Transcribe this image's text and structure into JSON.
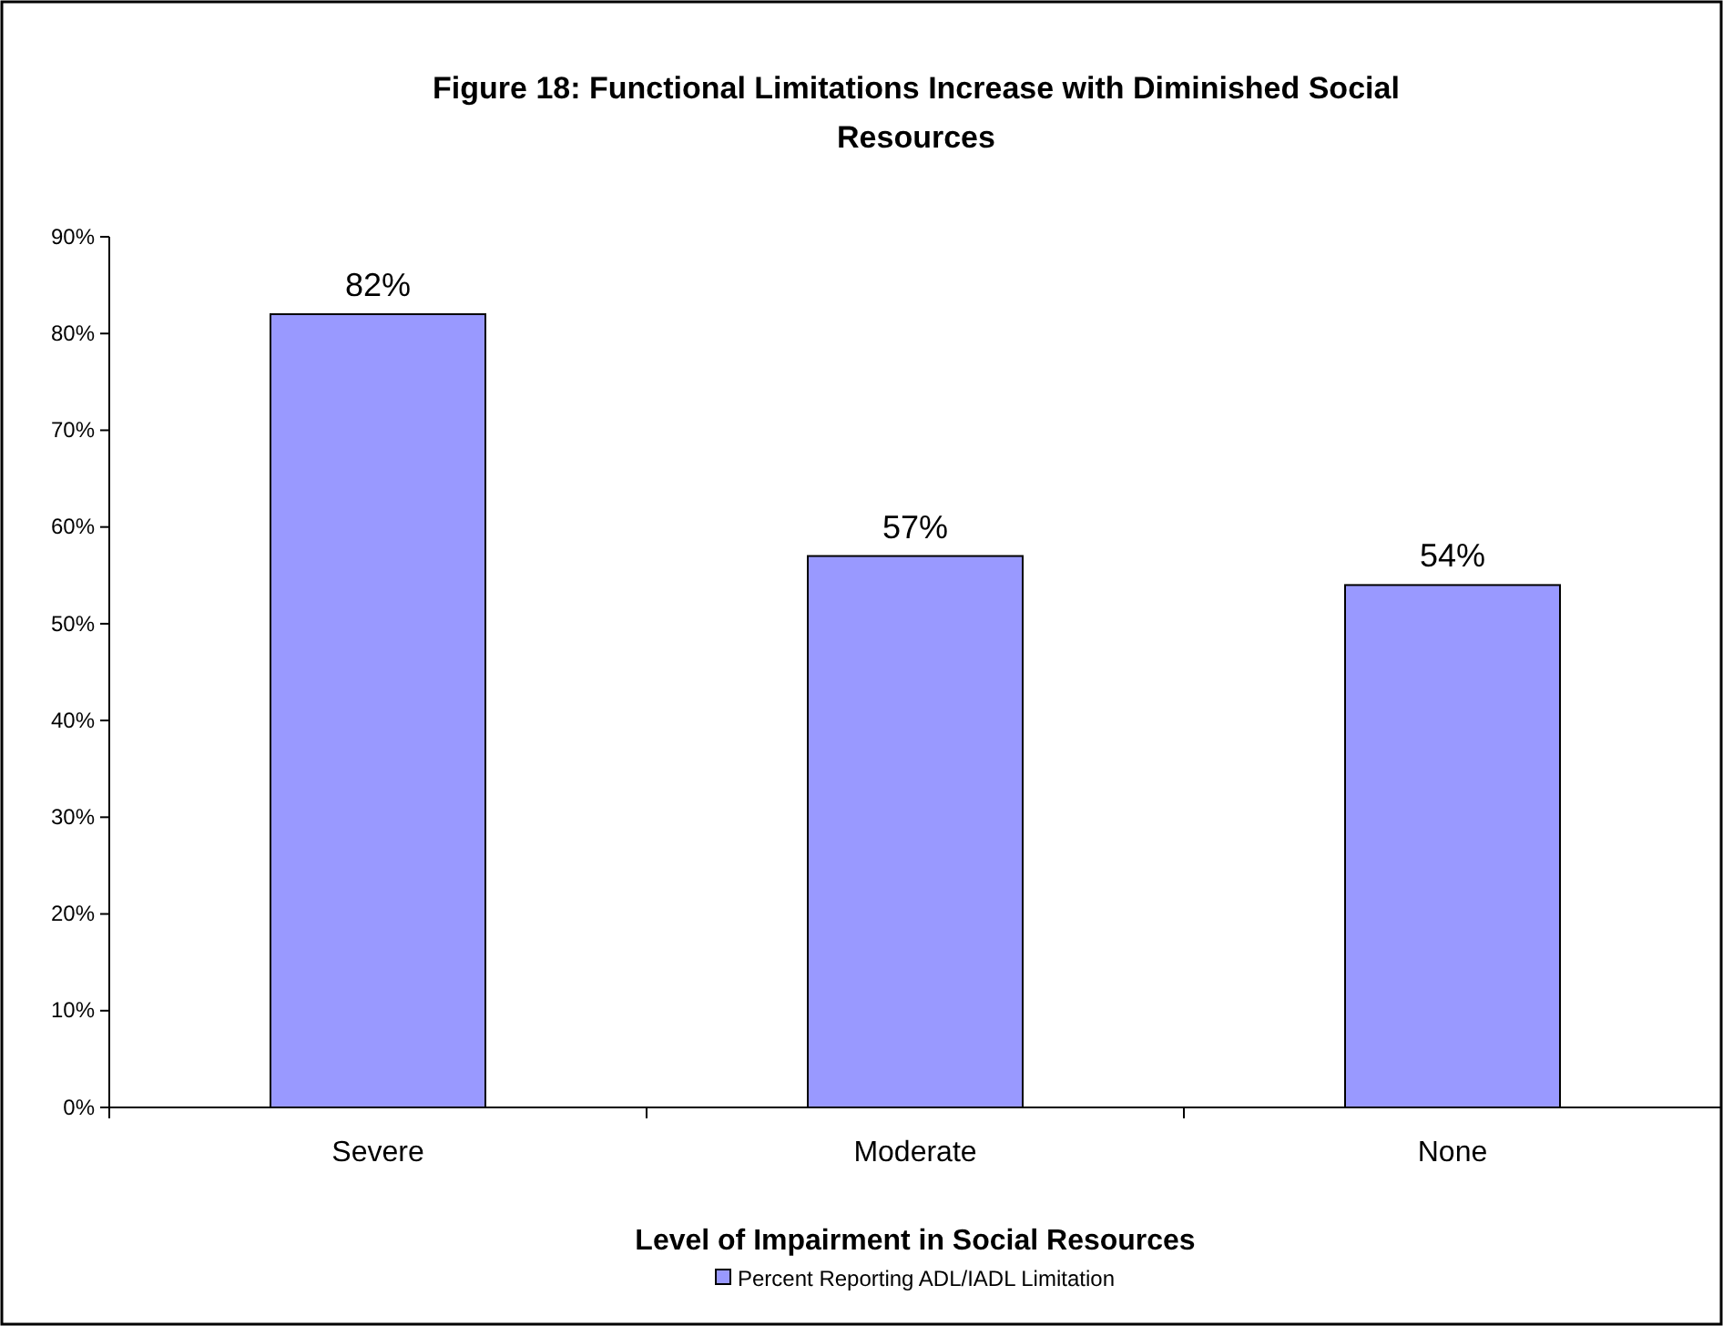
{
  "chart_data": {
    "type": "bar",
    "title": "Figure 18: Functional Limitations Increase with Diminished Social Resources",
    "xlabel": "Level of Impairment in Social Resources",
    "categories": [
      "Severe",
      "Moderate",
      "None"
    ],
    "series": [
      {
        "name": "Percent Reporting ADL/IADL Limitation",
        "color": "#9999ff",
        "values": [
          82,
          57,
          54
        ],
        "value_labels": [
          "82%",
          "57%",
          "54%"
        ]
      }
    ],
    "ylim": [
      0,
      90
    ],
    "yticks": [
      {
        "value": 0,
        "label": "0%"
      },
      {
        "value": 10,
        "label": "10%"
      },
      {
        "value": 20,
        "label": "20%"
      },
      {
        "value": 30,
        "label": "30%"
      },
      {
        "value": 40,
        "label": "40%"
      },
      {
        "value": 50,
        "label": "50%"
      },
      {
        "value": 60,
        "label": "60%"
      },
      {
        "value": 70,
        "label": "70%"
      },
      {
        "value": 80,
        "label": "80%"
      },
      {
        "value": 90,
        "label": "90%"
      }
    ],
    "grid": false,
    "legend": "bottom"
  }
}
